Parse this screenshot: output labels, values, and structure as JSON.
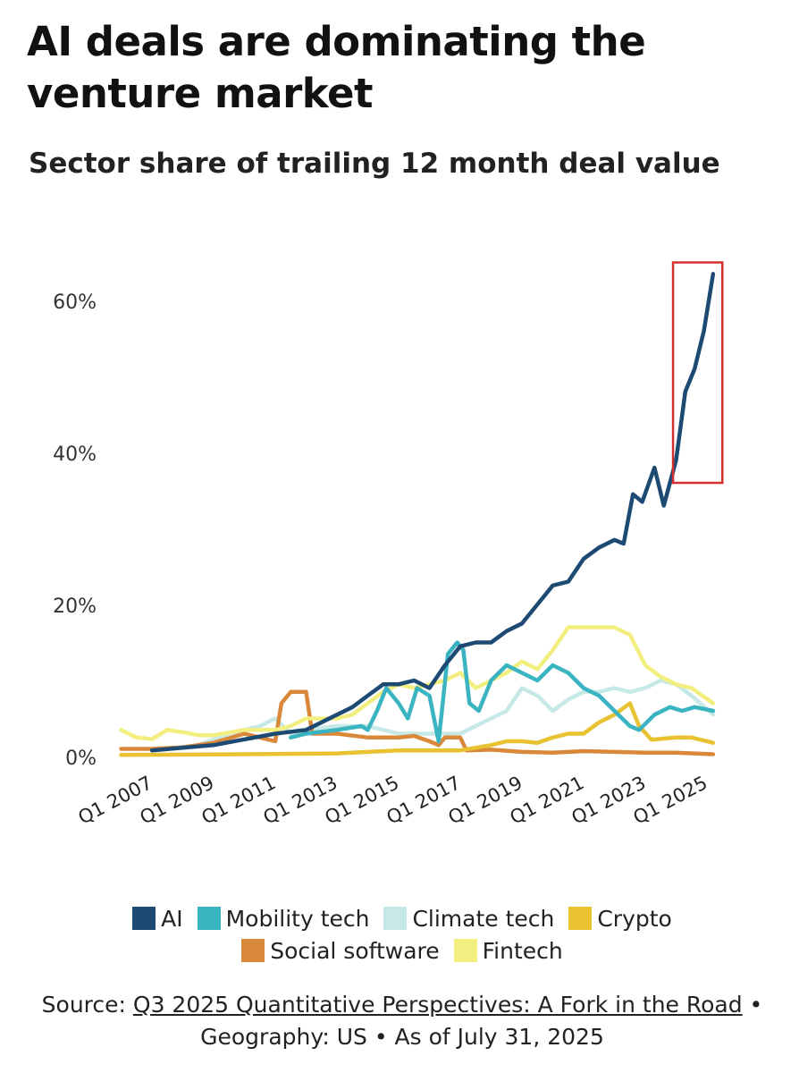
{
  "chart_data": {
    "type": "line",
    "title": "AI deals are dominating the venture market",
    "subtitle": "Sector share of trailing 12 month deal value",
    "xlabel": "",
    "ylabel": "",
    "ylim": [
      0,
      65
    ],
    "xlim": [
      2006,
      2025.5
    ],
    "yticks": [
      {
        "v": 0,
        "label": "0%"
      },
      {
        "v": 20,
        "label": "20%"
      },
      {
        "v": 40,
        "label": "40%"
      },
      {
        "v": 60,
        "label": "60%"
      }
    ],
    "xticks": [
      {
        "v": 2007,
        "label": "Q1 2007"
      },
      {
        "v": 2009,
        "label": "Q1 2009"
      },
      {
        "v": 2011,
        "label": "Q1 2011"
      },
      {
        "v": 2013,
        "label": "Q1 2013"
      },
      {
        "v": 2015,
        "label": "Q1 2015"
      },
      {
        "v": 2017,
        "label": "Q1 2017"
      },
      {
        "v": 2019,
        "label": "Q1 2019"
      },
      {
        "v": 2021,
        "label": "Q1 2021"
      },
      {
        "v": 2023,
        "label": "Q1 2023"
      },
      {
        "v": 2025,
        "label": "Q1 2025"
      }
    ],
    "grid": false,
    "legend_position": "bottom",
    "highlight_box": {
      "x": [
        2023.9,
        2025.5
      ],
      "y": [
        36,
        65
      ],
      "color": "#d32f2f"
    },
    "series": [
      {
        "name": "Climate tech",
        "color": "#c6e8e6",
        "points": [
          [
            2007.5,
            1
          ],
          [
            2008.5,
            1.5
          ],
          [
            2009.5,
            3
          ],
          [
            2010.5,
            4
          ],
          [
            2011,
            5
          ],
          [
            2011.5,
            3
          ],
          [
            2012,
            3.5
          ],
          [
            2013,
            4
          ],
          [
            2014,
            4
          ],
          [
            2015,
            3
          ],
          [
            2016,
            3
          ],
          [
            2017,
            3
          ],
          [
            2017.5,
            4
          ],
          [
            2018,
            5
          ],
          [
            2018.5,
            6
          ],
          [
            2019,
            9
          ],
          [
            2019.5,
            8
          ],
          [
            2020,
            6
          ],
          [
            2020.5,
            7.5
          ],
          [
            2021,
            8.5
          ],
          [
            2021.5,
            8.5
          ],
          [
            2022,
            9
          ],
          [
            2022.5,
            8.5
          ],
          [
            2023,
            9
          ],
          [
            2023.5,
            10
          ],
          [
            2024,
            9.5
          ],
          [
            2024.5,
            8
          ],
          [
            2025.2,
            5.5
          ]
        ]
      },
      {
        "name": "Social software",
        "color": "#d9883a",
        "points": [
          [
            2006,
            1
          ],
          [
            2007,
            1
          ],
          [
            2008,
            1.2
          ],
          [
            2009,
            1.8
          ],
          [
            2010,
            3
          ],
          [
            2010.5,
            2.5
          ],
          [
            2011,
            2
          ],
          [
            2011.2,
            7
          ],
          [
            2011.5,
            8.5
          ],
          [
            2012,
            8.5
          ],
          [
            2012.2,
            3
          ],
          [
            2013,
            3
          ],
          [
            2014,
            2.5
          ],
          [
            2015,
            2.5
          ],
          [
            2015.5,
            2.7
          ],
          [
            2016,
            2
          ],
          [
            2016.3,
            1.5
          ],
          [
            2016.5,
            2.5
          ],
          [
            2017,
            2.5
          ],
          [
            2017.2,
            0.8
          ],
          [
            2018,
            0.9
          ],
          [
            2019,
            0.6
          ],
          [
            2020,
            0.5
          ],
          [
            2021,
            0.7
          ],
          [
            2022,
            0.6
          ],
          [
            2023,
            0.5
          ],
          [
            2024,
            0.5
          ],
          [
            2025.2,
            0.3
          ]
        ]
      },
      {
        "name": "Crypto",
        "color": "#e8c230",
        "points": [
          [
            2006,
            0.2
          ],
          [
            2010,
            0.3
          ],
          [
            2013,
            0.4
          ],
          [
            2015,
            0.8
          ],
          [
            2017,
            0.8
          ],
          [
            2018,
            1.5
          ],
          [
            2018.5,
            2
          ],
          [
            2019,
            2
          ],
          [
            2019.5,
            1.8
          ],
          [
            2020,
            2.5
          ],
          [
            2020.5,
            3
          ],
          [
            2021,
            3
          ],
          [
            2021.5,
            4.5
          ],
          [
            2022,
            5.5
          ],
          [
            2022.5,
            7
          ],
          [
            2022.8,
            4
          ],
          [
            2023.2,
            2.2
          ],
          [
            2024,
            2.5
          ],
          [
            2024.5,
            2.5
          ],
          [
            2025.2,
            1.8
          ]
        ]
      },
      {
        "name": "Fintech",
        "color": "#f2ef80",
        "points": [
          [
            2006,
            3.5
          ],
          [
            2006.5,
            2.5
          ],
          [
            2007,
            2.3
          ],
          [
            2007.5,
            3.5
          ],
          [
            2008,
            3.2
          ],
          [
            2008.5,
            2.8
          ],
          [
            2009,
            2.8
          ],
          [
            2010,
            3.5
          ],
          [
            2011,
            3.5
          ],
          [
            2011.5,
            4
          ],
          [
            2012,
            5
          ],
          [
            2013,
            5
          ],
          [
            2013.5,
            5.5
          ],
          [
            2014,
            7
          ],
          [
            2014.5,
            8.5
          ],
          [
            2015,
            9.5
          ],
          [
            2015.5,
            9
          ],
          [
            2016,
            9.5
          ],
          [
            2016.5,
            10
          ],
          [
            2017,
            11
          ],
          [
            2017.5,
            9
          ],
          [
            2018,
            10
          ],
          [
            2018.5,
            11
          ],
          [
            2019,
            12.5
          ],
          [
            2019.5,
            11.5
          ],
          [
            2020,
            14
          ],
          [
            2020.5,
            17
          ],
          [
            2021,
            17
          ],
          [
            2021.5,
            17
          ],
          [
            2022,
            17
          ],
          [
            2022.5,
            16
          ],
          [
            2023,
            12
          ],
          [
            2023.5,
            10.5
          ],
          [
            2024,
            9.5
          ],
          [
            2024.5,
            9
          ],
          [
            2025.2,
            7
          ]
        ]
      },
      {
        "name": "Mobility tech",
        "color": "#3bb4c1",
        "points": [
          [
            2011.5,
            2.5
          ],
          [
            2012,
            3
          ],
          [
            2013,
            3.5
          ],
          [
            2013.8,
            4
          ],
          [
            2014,
            3.5
          ],
          [
            2014.3,
            6
          ],
          [
            2014.6,
            9
          ],
          [
            2015,
            7
          ],
          [
            2015.3,
            5
          ],
          [
            2015.6,
            9
          ],
          [
            2016,
            8
          ],
          [
            2016.3,
            2
          ],
          [
            2016.6,
            13.5
          ],
          [
            2016.9,
            15
          ],
          [
            2017.1,
            14
          ],
          [
            2017.3,
            7
          ],
          [
            2017.6,
            6
          ],
          [
            2018,
            10
          ],
          [
            2018.5,
            12
          ],
          [
            2019,
            11
          ],
          [
            2019.5,
            10
          ],
          [
            2020,
            12
          ],
          [
            2020.5,
            11
          ],
          [
            2021,
            9
          ],
          [
            2021.5,
            8
          ],
          [
            2022,
            6
          ],
          [
            2022.5,
            4
          ],
          [
            2022.8,
            3.5
          ],
          [
            2023.3,
            5.5
          ],
          [
            2023.8,
            6.5
          ],
          [
            2024.2,
            6
          ],
          [
            2024.6,
            6.5
          ],
          [
            2025.2,
            6
          ]
        ]
      },
      {
        "name": "AI",
        "color": "#1d4a73",
        "points": [
          [
            2007,
            0.8
          ],
          [
            2009,
            1.5
          ],
          [
            2011,
            3
          ],
          [
            2012,
            3.5
          ],
          [
            2012.5,
            4.5
          ],
          [
            2013,
            5.5
          ],
          [
            2013.5,
            6.5
          ],
          [
            2014,
            8
          ],
          [
            2014.5,
            9.5
          ],
          [
            2015,
            9.5
          ],
          [
            2015.5,
            10
          ],
          [
            2016,
            9
          ],
          [
            2016.5,
            12
          ],
          [
            2017,
            14.5
          ],
          [
            2017.5,
            15
          ],
          [
            2018,
            15
          ],
          [
            2018.5,
            16.5
          ],
          [
            2019,
            17.5
          ],
          [
            2019.5,
            20
          ],
          [
            2020,
            22.5
          ],
          [
            2020.5,
            23
          ],
          [
            2021,
            26
          ],
          [
            2021.5,
            27.5
          ],
          [
            2022,
            28.5
          ],
          [
            2022.3,
            28
          ],
          [
            2022.6,
            34.5
          ],
          [
            2022.9,
            33.5
          ],
          [
            2023.3,
            38
          ],
          [
            2023.6,
            33
          ],
          [
            2024,
            39
          ],
          [
            2024.3,
            48
          ],
          [
            2024.6,
            51
          ],
          [
            2024.9,
            56
          ],
          [
            2025.2,
            63.5
          ]
        ]
      }
    ],
    "legend": [
      {
        "name": "AI",
        "color": "#1d4a73"
      },
      {
        "name": "Mobility tech",
        "color": "#3bb4c1"
      },
      {
        "name": "Climate tech",
        "color": "#c6e8e6"
      },
      {
        "name": "Crypto",
        "color": "#e8c230"
      },
      {
        "name": "Social software",
        "color": "#d9883a"
      },
      {
        "name": "Fintech",
        "color": "#f2ef80"
      }
    ]
  },
  "source": {
    "prefix": "Source: ",
    "link": "Q3 2025 Quantitative Perspectives: A Fork in the Road",
    "suffix": " • Geography: US • As of July 31, 2025"
  }
}
